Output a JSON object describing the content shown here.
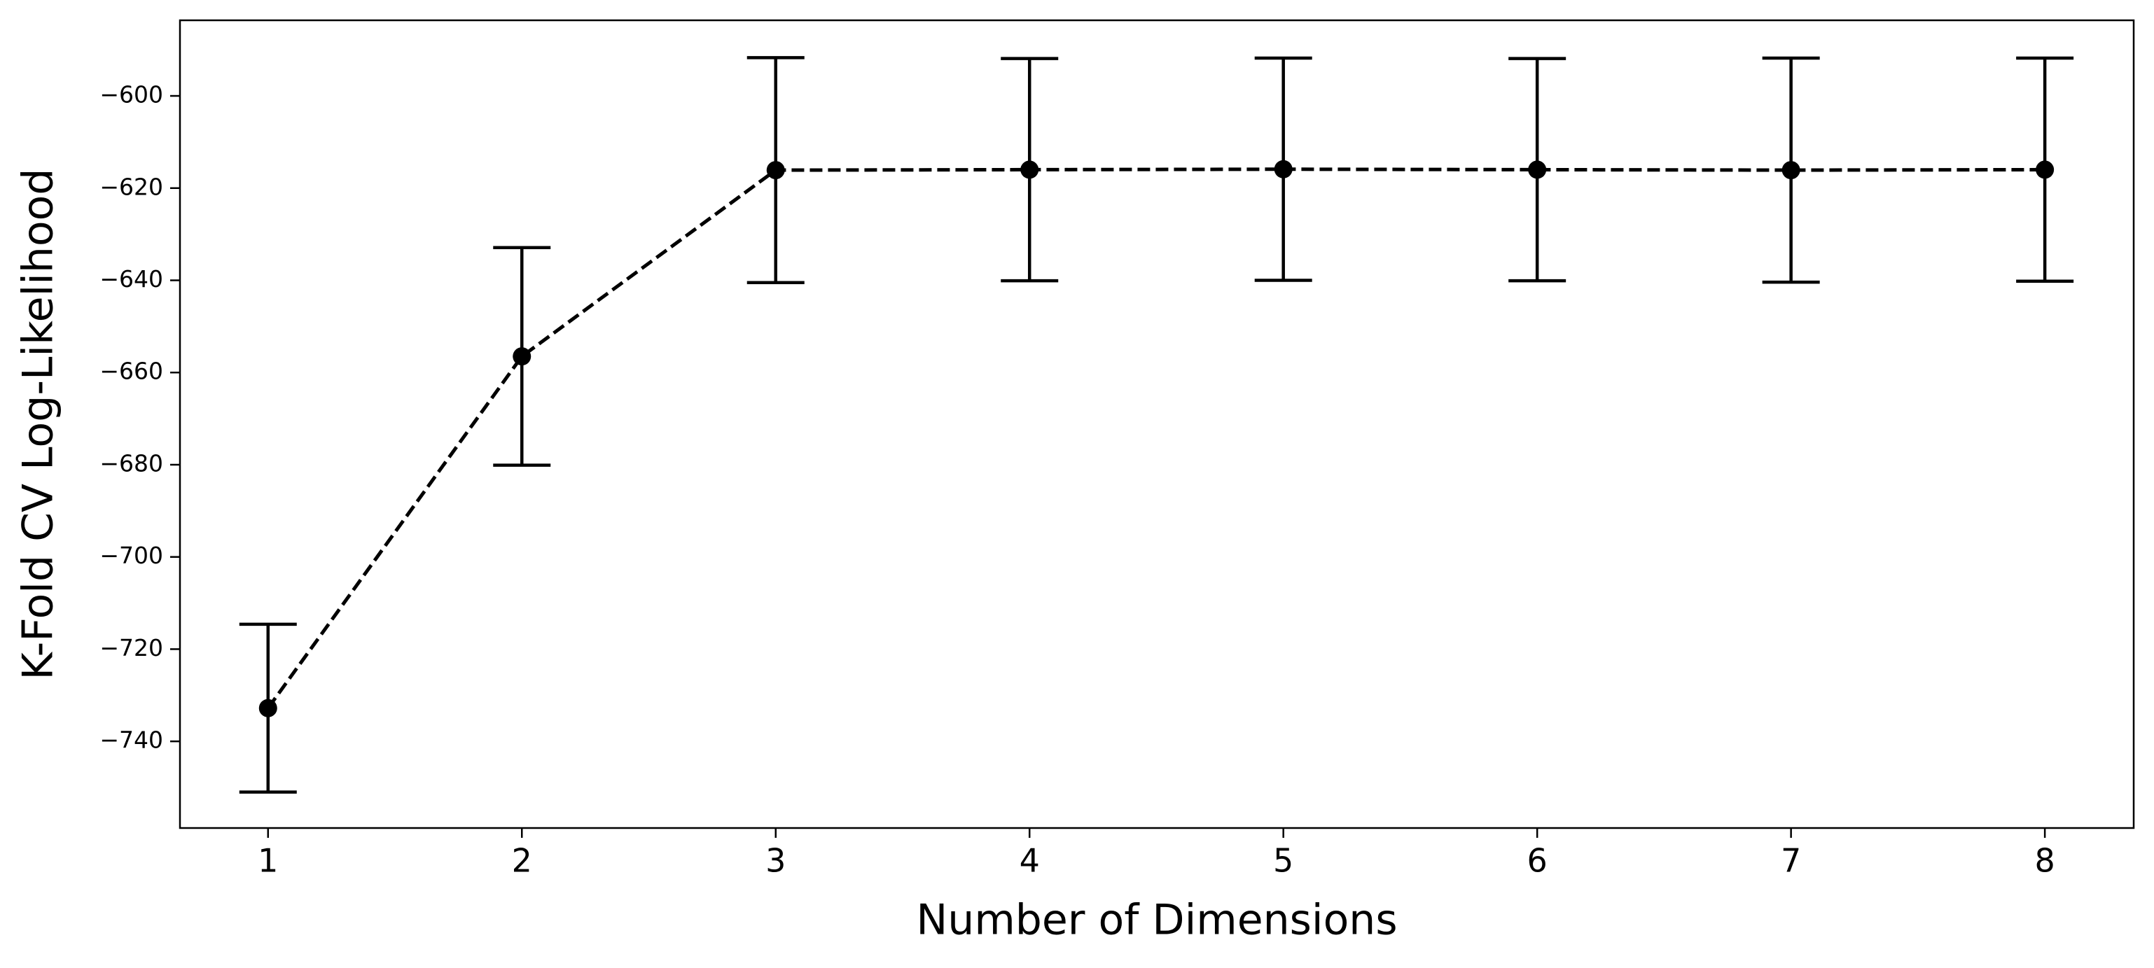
{
  "chart_data": {
    "type": "line",
    "x_label": "Number of Dimensions",
    "y_label": "K-Fold CV Log-Likelihood",
    "x": [
      1,
      2,
      3,
      4,
      5,
      6,
      7,
      8
    ],
    "values": [
      -732.8,
      -656.5,
      -616.1,
      -616.0,
      -615.9,
      -616.0,
      -616.1,
      -616.0
    ],
    "errors": [
      18.2,
      23.6,
      24.4,
      24.1,
      24.1,
      24.1,
      24.3,
      24.2
    ],
    "color": "#000000",
    "line_style": "dashed",
    "xlim": [
      0.653,
      8.35
    ],
    "xticks": [
      1,
      2,
      3,
      4,
      5,
      6,
      7,
      8
    ],
    "ylim": [
      -758.8,
      -583.6
    ],
    "yticks": [
      {
        "value": -740,
        "label": "−740"
      },
      {
        "value": -720,
        "label": "−720"
      },
      {
        "value": -700,
        "label": "−700"
      },
      {
        "value": -680,
        "label": "−680"
      },
      {
        "value": -660,
        "label": "−660"
      },
      {
        "value": -640,
        "label": "−640"
      },
      {
        "value": -620,
        "label": "−620"
      },
      {
        "value": -600,
        "label": "−600"
      }
    ],
    "grid": false
  }
}
